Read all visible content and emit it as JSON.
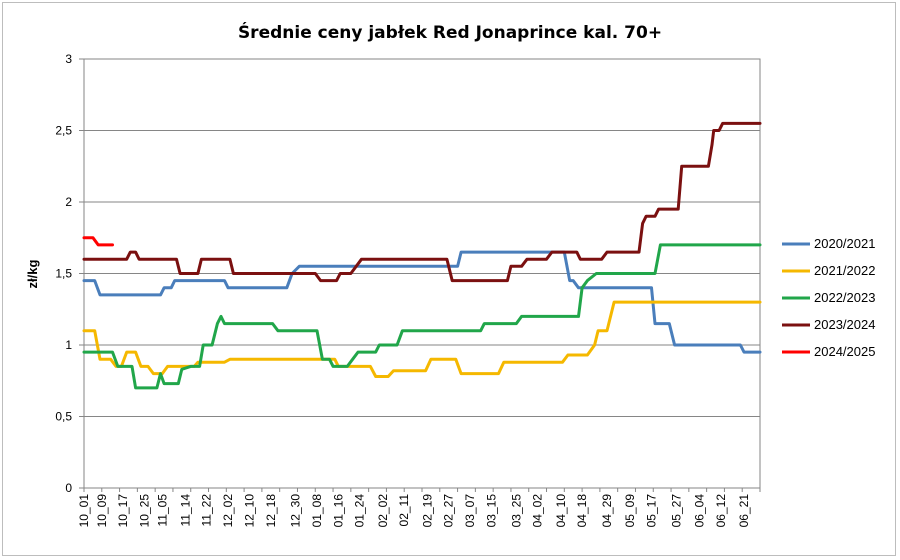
{
  "chart_data": {
    "type": "line",
    "title": "Średnie ceny jabłek Red Jonaprince kal. 70+",
    "xlabel": "",
    "ylabel": "zł/kg",
    "ylim": [
      0,
      3
    ],
    "yticks": [
      0,
      0.5,
      1,
      1.5,
      2,
      2.5,
      3
    ],
    "ytick_labels": [
      "0",
      "0,5",
      "1",
      "1,5",
      "2",
      "2,5",
      "3"
    ],
    "grid": "horizontal",
    "legend_position": "right",
    "x_range": [
      0,
      38
    ],
    "categories": [
      "10_01",
      "10_09",
      "10_17",
      "10_25",
      "11_05",
      "11_14",
      "11_22",
      "12_02",
      "12_10",
      "12_18",
      "12_30",
      "01_08",
      "01_16",
      "01_24",
      "02_02",
      "02_11",
      "02_19",
      "02_27",
      "03_07",
      "03_15",
      "03_25",
      "04_02",
      "04_10",
      "04_18",
      "04_29",
      "05_09",
      "05_17",
      "05_27",
      "06_04",
      "06_12",
      "06_21"
    ],
    "category_positions": [
      0,
      1,
      2.2,
      3.4,
      4.4,
      5.7,
      6.9,
      8.1,
      9.3,
      10.5,
      11.9,
      13.1,
      14.3,
      15.5,
      16.8,
      18.0,
      19.3,
      20.5,
      21.7,
      22.9,
      24.3,
      25.5,
      26.8,
      28.0,
      29.4,
      30.7,
      31.9,
      33.3,
      34.6,
      35.8,
      37.1
    ],
    "series": [
      {
        "name": "2020/2021",
        "color": "#4a7ebb",
        "points": [
          [
            0,
            1.45
          ],
          [
            0.6,
            1.45
          ],
          [
            0.9,
            1.35
          ],
          [
            4.3,
            1.35
          ],
          [
            4.5,
            1.4
          ],
          [
            4.9,
            1.4
          ],
          [
            5.1,
            1.45
          ],
          [
            7.9,
            1.45
          ],
          [
            8.1,
            1.4
          ],
          [
            11.4,
            1.4
          ],
          [
            11.7,
            1.5
          ],
          [
            12.1,
            1.55
          ],
          [
            21.0,
            1.55
          ],
          [
            21.2,
            1.65
          ],
          [
            27.0,
            1.65
          ],
          [
            27.3,
            1.45
          ],
          [
            27.5,
            1.45
          ],
          [
            27.8,
            1.4
          ],
          [
            31.9,
            1.4
          ],
          [
            32.1,
            1.15
          ],
          [
            32.9,
            1.15
          ],
          [
            33.2,
            1.0
          ],
          [
            36.9,
            1.0
          ],
          [
            37.1,
            0.95
          ],
          [
            38,
            0.95
          ]
        ]
      },
      {
        "name": "2021/2022",
        "color": "#f5b800",
        "points": [
          [
            0,
            1.1
          ],
          [
            0.6,
            1.1
          ],
          [
            0.9,
            0.9
          ],
          [
            1.5,
            0.9
          ],
          [
            1.8,
            0.85
          ],
          [
            2.1,
            0.85
          ],
          [
            2.4,
            0.95
          ],
          [
            2.9,
            0.95
          ],
          [
            3.2,
            0.85
          ],
          [
            3.6,
            0.85
          ],
          [
            3.9,
            0.8
          ],
          [
            4.4,
            0.8
          ],
          [
            4.7,
            0.85
          ],
          [
            6.2,
            0.85
          ],
          [
            6.4,
            0.88
          ],
          [
            7.9,
            0.88
          ],
          [
            8.2,
            0.9
          ],
          [
            14.1,
            0.9
          ],
          [
            14.3,
            0.85
          ],
          [
            16.1,
            0.85
          ],
          [
            16.4,
            0.78
          ],
          [
            17.1,
            0.78
          ],
          [
            17.4,
            0.82
          ],
          [
            19.2,
            0.82
          ],
          [
            19.5,
            0.9
          ],
          [
            20.9,
            0.9
          ],
          [
            21.2,
            0.8
          ],
          [
            23.3,
            0.8
          ],
          [
            23.6,
            0.88
          ],
          [
            26.9,
            0.88
          ],
          [
            27.2,
            0.93
          ],
          [
            28.3,
            0.93
          ],
          [
            28.7,
            1.0
          ],
          [
            28.9,
            1.1
          ],
          [
            29.4,
            1.1
          ],
          [
            29.8,
            1.3
          ],
          [
            38,
            1.3
          ]
        ]
      },
      {
        "name": "2022/2023",
        "color": "#21a64a",
        "points": [
          [
            0,
            0.95
          ],
          [
            1.6,
            0.95
          ],
          [
            1.9,
            0.85
          ],
          [
            2.7,
            0.85
          ],
          [
            2.9,
            0.7
          ],
          [
            4.1,
            0.7
          ],
          [
            4.3,
            0.8
          ],
          [
            4.5,
            0.73
          ],
          [
            5.3,
            0.73
          ],
          [
            5.5,
            0.83
          ],
          [
            6.0,
            0.85
          ],
          [
            6.5,
            0.85
          ],
          [
            6.7,
            1.0
          ],
          [
            7.2,
            1.0
          ],
          [
            7.5,
            1.15
          ],
          [
            7.7,
            1.2
          ],
          [
            7.9,
            1.15
          ],
          [
            10.6,
            1.15
          ],
          [
            10.9,
            1.1
          ],
          [
            13.1,
            1.1
          ],
          [
            13.4,
            0.9
          ],
          [
            13.8,
            0.9
          ],
          [
            14.0,
            0.85
          ],
          [
            14.8,
            0.85
          ],
          [
            15.1,
            0.9
          ],
          [
            15.4,
            0.95
          ],
          [
            16.4,
            0.95
          ],
          [
            16.6,
            1.0
          ],
          [
            17.6,
            1.0
          ],
          [
            17.9,
            1.1
          ],
          [
            22.3,
            1.1
          ],
          [
            22.5,
            1.15
          ],
          [
            24.3,
            1.15
          ],
          [
            24.6,
            1.2
          ],
          [
            27.8,
            1.2
          ],
          [
            28.0,
            1.4
          ],
          [
            28.3,
            1.45
          ],
          [
            28.8,
            1.5
          ],
          [
            32.1,
            1.5
          ],
          [
            32.4,
            1.7
          ],
          [
            38,
            1.7
          ]
        ]
      },
      {
        "name": "2023/2024",
        "color": "#7b1010",
        "points": [
          [
            0,
            1.6
          ],
          [
            2.4,
            1.6
          ],
          [
            2.6,
            1.65
          ],
          [
            2.9,
            1.65
          ],
          [
            3.1,
            1.6
          ],
          [
            5.2,
            1.6
          ],
          [
            5.4,
            1.5
          ],
          [
            6.4,
            1.5
          ],
          [
            6.6,
            1.6
          ],
          [
            8.2,
            1.6
          ],
          [
            8.4,
            1.5
          ],
          [
            12.1,
            1.5
          ],
          [
            12.4,
            1.5
          ],
          [
            13.0,
            1.5
          ],
          [
            13.3,
            1.45
          ],
          [
            14.2,
            1.45
          ],
          [
            14.4,
            1.5
          ],
          [
            15.0,
            1.5
          ],
          [
            15.3,
            1.55
          ],
          [
            15.6,
            1.6
          ],
          [
            20.4,
            1.6
          ],
          [
            20.7,
            1.45
          ],
          [
            23.8,
            1.45
          ],
          [
            24.0,
            1.55
          ],
          [
            24.6,
            1.55
          ],
          [
            24.9,
            1.6
          ],
          [
            26.0,
            1.6
          ],
          [
            26.3,
            1.65
          ],
          [
            27.7,
            1.65
          ],
          [
            27.9,
            1.6
          ],
          [
            29.1,
            1.6
          ],
          [
            29.4,
            1.65
          ],
          [
            31.2,
            1.65
          ],
          [
            31.4,
            1.85
          ],
          [
            31.6,
            1.9
          ],
          [
            32.1,
            1.9
          ],
          [
            32.3,
            1.95
          ],
          [
            33.4,
            1.95
          ],
          [
            33.6,
            2.25
          ],
          [
            35.1,
            2.25
          ],
          [
            35.3,
            2.4
          ],
          [
            35.4,
            2.5
          ],
          [
            35.7,
            2.5
          ],
          [
            35.9,
            2.55
          ],
          [
            38,
            2.55
          ]
        ]
      },
      {
        "name": "2024/2025",
        "color": "#ff0000",
        "points": [
          [
            0,
            1.75
          ],
          [
            0.5,
            1.75
          ],
          [
            0.8,
            1.7
          ],
          [
            1.6,
            1.7
          ]
        ]
      }
    ]
  }
}
